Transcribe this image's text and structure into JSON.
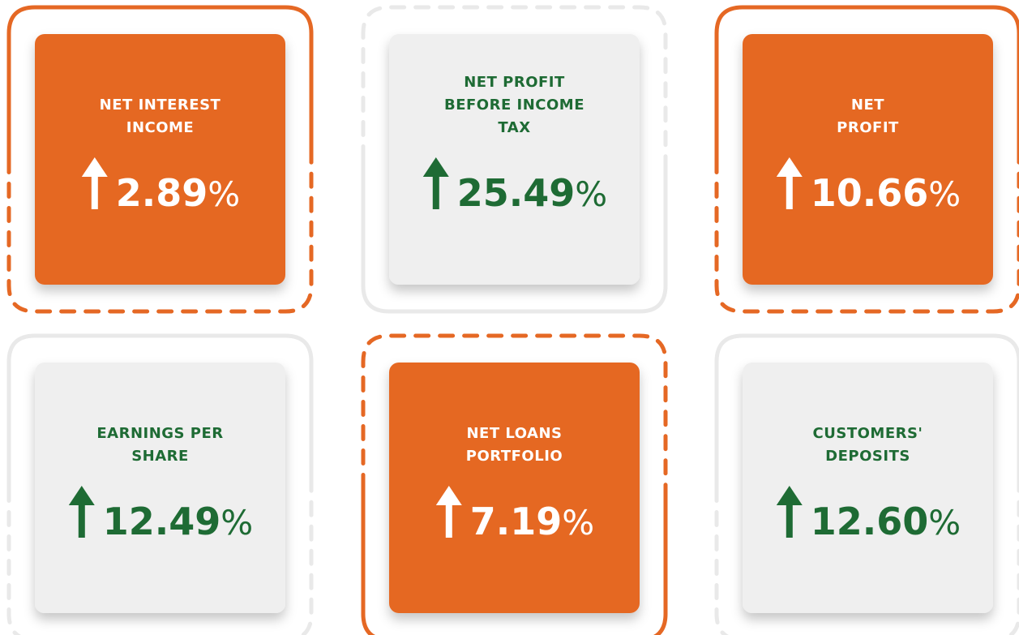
{
  "cards": [
    {
      "lines": [
        "NET INTEREST",
        "INCOME"
      ],
      "value": "2.89",
      "suffix": "%",
      "fill": "#e56824",
      "color": "#ffffff"
    },
    {
      "lines": [
        "NET PROFIT",
        "BEFORE INCOME",
        "TAX"
      ],
      "value": "25.49",
      "suffix": "%",
      "fill": "#efefef",
      "color": "#1e6b34"
    },
    {
      "lines": [
        "NET",
        "PROFIT"
      ],
      "value": "10.66",
      "suffix": "%",
      "fill": "#e56824",
      "color": "#ffffff"
    },
    {
      "lines": [
        "EARNINGS PER",
        "SHARE"
      ],
      "value": "12.49",
      "suffix": "%",
      "fill": "#efefef",
      "color": "#1e6b34"
    },
    {
      "lines": [
        "NET LOANS",
        "PORTFOLIO"
      ],
      "value": "7.19",
      "suffix": "%",
      "fill": "#e56824",
      "color": "#ffffff"
    },
    {
      "lines": [
        "CUSTOMERS'",
        "DEPOSITS"
      ],
      "value": "12.60",
      "suffix": "%",
      "fill": "#efefef",
      "color": "#1e6b34"
    }
  ]
}
